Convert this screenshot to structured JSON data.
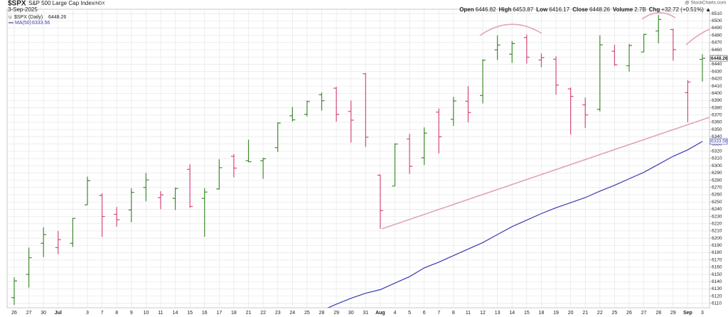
{
  "chart_data": {
    "type": "ohlc",
    "title": "$SPX",
    "subtitle": "S&P 500 Large Cap Index",
    "exchange": "INDX",
    "date": "3-Sep-2025",
    "source": "@ StockCharts.com",
    "quote": [
      {
        "label": "Open",
        "value": 6446.82
      },
      {
        "label": "High",
        "value": 6453.87
      },
      {
        "label": "Low",
        "value": 6416.17
      },
      {
        "label": "Close",
        "value": 6448.26
      },
      {
        "label": "Volume",
        "value": "2.7B"
      },
      {
        "label": "Chg",
        "value": "+32.72 (+0.51%) ▲"
      }
    ],
    "categories": [
      "26",
      "27",
      "30",
      "Jul",
      null,
      "3",
      "7",
      "8",
      "9",
      "10",
      "11",
      "14",
      "15",
      "16",
      "17",
      "18",
      "21",
      "22",
      "23",
      "24",
      "25",
      "28",
      "29",
      "30",
      "31",
      "Aug",
      "4",
      "5",
      "6",
      "7",
      "8",
      "11",
      "12",
      "13",
      "14",
      "15",
      "18",
      "19",
      "20",
      "21",
      "22",
      "25",
      "26",
      "27",
      "28",
      "29",
      "Sep",
      "3"
    ],
    "series": [
      {
        "name": "$SPX (Daily)",
        "type": "ohlc",
        "up_color": "#3d8a2e",
        "down_color": "#d4487a",
        "open": [
          6118,
          6150,
          6193,
          6187,
          6193,
          6246,
          6259,
          6233,
          6239,
          6270,
          6256,
          6255,
          6295,
          6255,
          6268,
          6313,
          6307,
          6307,
          6325,
          6369,
          6371,
          6398,
          6407,
          6375,
          6427,
          6287,
          6272,
          6337,
          6311,
          6374,
          6364,
          6389,
          6397,
          6460,
          6454,
          6477,
          6446,
          6447,
          6406,
          6384,
          6378,
          6458,
          6438,
          6457,
          6486,
          6488,
          6401,
          6446.82
        ],
        "high": [
          6146,
          6187,
          6215,
          6210,
          6228,
          6285,
          6262,
          6243,
          6269,
          6290,
          6265,
          6270,
          6302,
          6269,
          6309,
          6316,
          6336,
          6311,
          6360,
          6381,
          6390,
          6401,
          6409,
          6390,
          6428,
          6288,
          6331,
          6344,
          6353,
          6379,
          6395,
          6410,
          6447,
          6480,
          6472,
          6481,
          6455,
          6451,
          6408,
          6394,
          6480,
          6467,
          6468,
          6482,
          6508,
          6489,
          6418,
          6453.87
        ],
        "low": [
          6108,
          6132,
          6174,
          6178,
          6188,
          6246,
          6202,
          6216,
          6222,
          6251,
          6240,
          6239,
          6242,
          6202,
          6267,
          6284,
          6305,
          6282,
          6319,
          6361,
          6368,
          6376,
          6361,
          6332,
          6326,
          6213,
          6272,
          6289,
          6301,
          6317,
          6355,
          6360,
          6386,
          6446,
          6442,
          6441,
          6436,
          6398,
          6343,
          6352,
          6375,
          6438,
          6430,
          6457,
          6469,
          6445,
          6360,
          6416.17
        ],
        "close": [
          6141.02,
          6173.07,
          6204.95,
          6198.01,
          6227.42,
          6279.35,
          6229.98,
          6225.52,
          6263.26,
          6280.46,
          6259.75,
          6268.56,
          6243.76,
          6263.7,
          6297.36,
          6296.79,
          6305.6,
          6309.62,
          6358.91,
          6363.35,
          6388.64,
          6389.77,
          6370.86,
          6362.9,
          6339.39,
          6238.01,
          6329.94,
          6299.19,
          6345.06,
          6340,
          6389.45,
          6373.45,
          6445.76,
          6466.58,
          6468.54,
          6449.8,
          6449.15,
          6411.37,
          6395.78,
          6370.17,
          6466.91,
          6439.32,
          6465.94,
          6481.4,
          6501.86,
          6460.26,
          6415.54,
          6448.26
        ]
      },
      {
        "name": "MA(50)",
        "type": "line",
        "color": "#3b3bb0",
        "values": [
          null,
          null,
          null,
          null,
          null,
          null,
          null,
          null,
          null,
          null,
          null,
          null,
          null,
          null,
          null,
          null,
          null,
          null,
          null,
          null,
          null,
          6100,
          6109,
          6117,
          6124,
          6129,
          6138,
          6147,
          6159,
          6167,
          6176,
          6185,
          6194,
          6205,
          6216,
          6225,
          6234,
          6242,
          6249,
          6256,
          6265,
          6273,
          6282,
          6291,
          6302,
          6313,
          6322,
          6333.56
        ]
      }
    ],
    "ylim": [
      6104,
      6516
    ],
    "yticks": [
      6110,
      6120,
      6130,
      6140,
      6150,
      6160,
      6170,
      6180,
      6190,
      6200,
      6210,
      6220,
      6230,
      6240,
      6250,
      6260,
      6270,
      6280,
      6290,
      6300,
      6310,
      6320,
      6330,
      6340,
      6350,
      6360,
      6370,
      6380,
      6390,
      6400,
      6410,
      6420,
      6430,
      6440,
      6450,
      6460,
      6470,
      6480,
      6490,
      6500,
      6510
    ],
    "grid": true
  }
}
